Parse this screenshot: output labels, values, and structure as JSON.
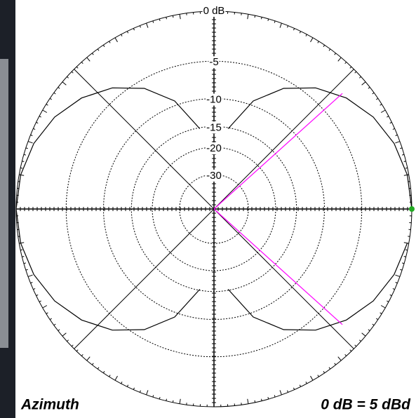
{
  "chart_data": {
    "type": "polar",
    "scale": "arrl-log",
    "angles": [
      0,
      10,
      20,
      30,
      40,
      50,
      60,
      70,
      80,
      90,
      100,
      110,
      120,
      130,
      140,
      150,
      160,
      170,
      180,
      190,
      200,
      210,
      220,
      230,
      240,
      250,
      260,
      270,
      280,
      290,
      300,
      310,
      320,
      330,
      340,
      350
    ],
    "values": [
      0,
      -0.13,
      -0.54,
      -1.25,
      -2.32,
      -3.84,
      -6.02,
      -9.32,
      -15.2,
      null,
      -15.2,
      -9.32,
      -6.02,
      -3.84,
      -2.32,
      -1.25,
      -0.54,
      -0.13,
      0,
      -0.13,
      -0.54,
      -1.25,
      -2.32,
      -3.84,
      -6.02,
      -9.32,
      -15.2,
      null,
      -15.2,
      -9.32,
      -6.02,
      -3.84,
      -2.32,
      -1.25,
      -0.54,
      -0.13
    ],
    "color": "#000000",
    "rticks": [
      {
        "value": 0,
        "label": "0 dB"
      },
      -5,
      -10,
      -15,
      -20,
      -30
    ],
    "beamwidth_markers": [
      42,
      318
    ],
    "marker_color": "#ff00ff",
    "max_marker_color": "#22aa22",
    "axis_label": "Azimuth",
    "reference": "0 dB = 5 dBd"
  }
}
